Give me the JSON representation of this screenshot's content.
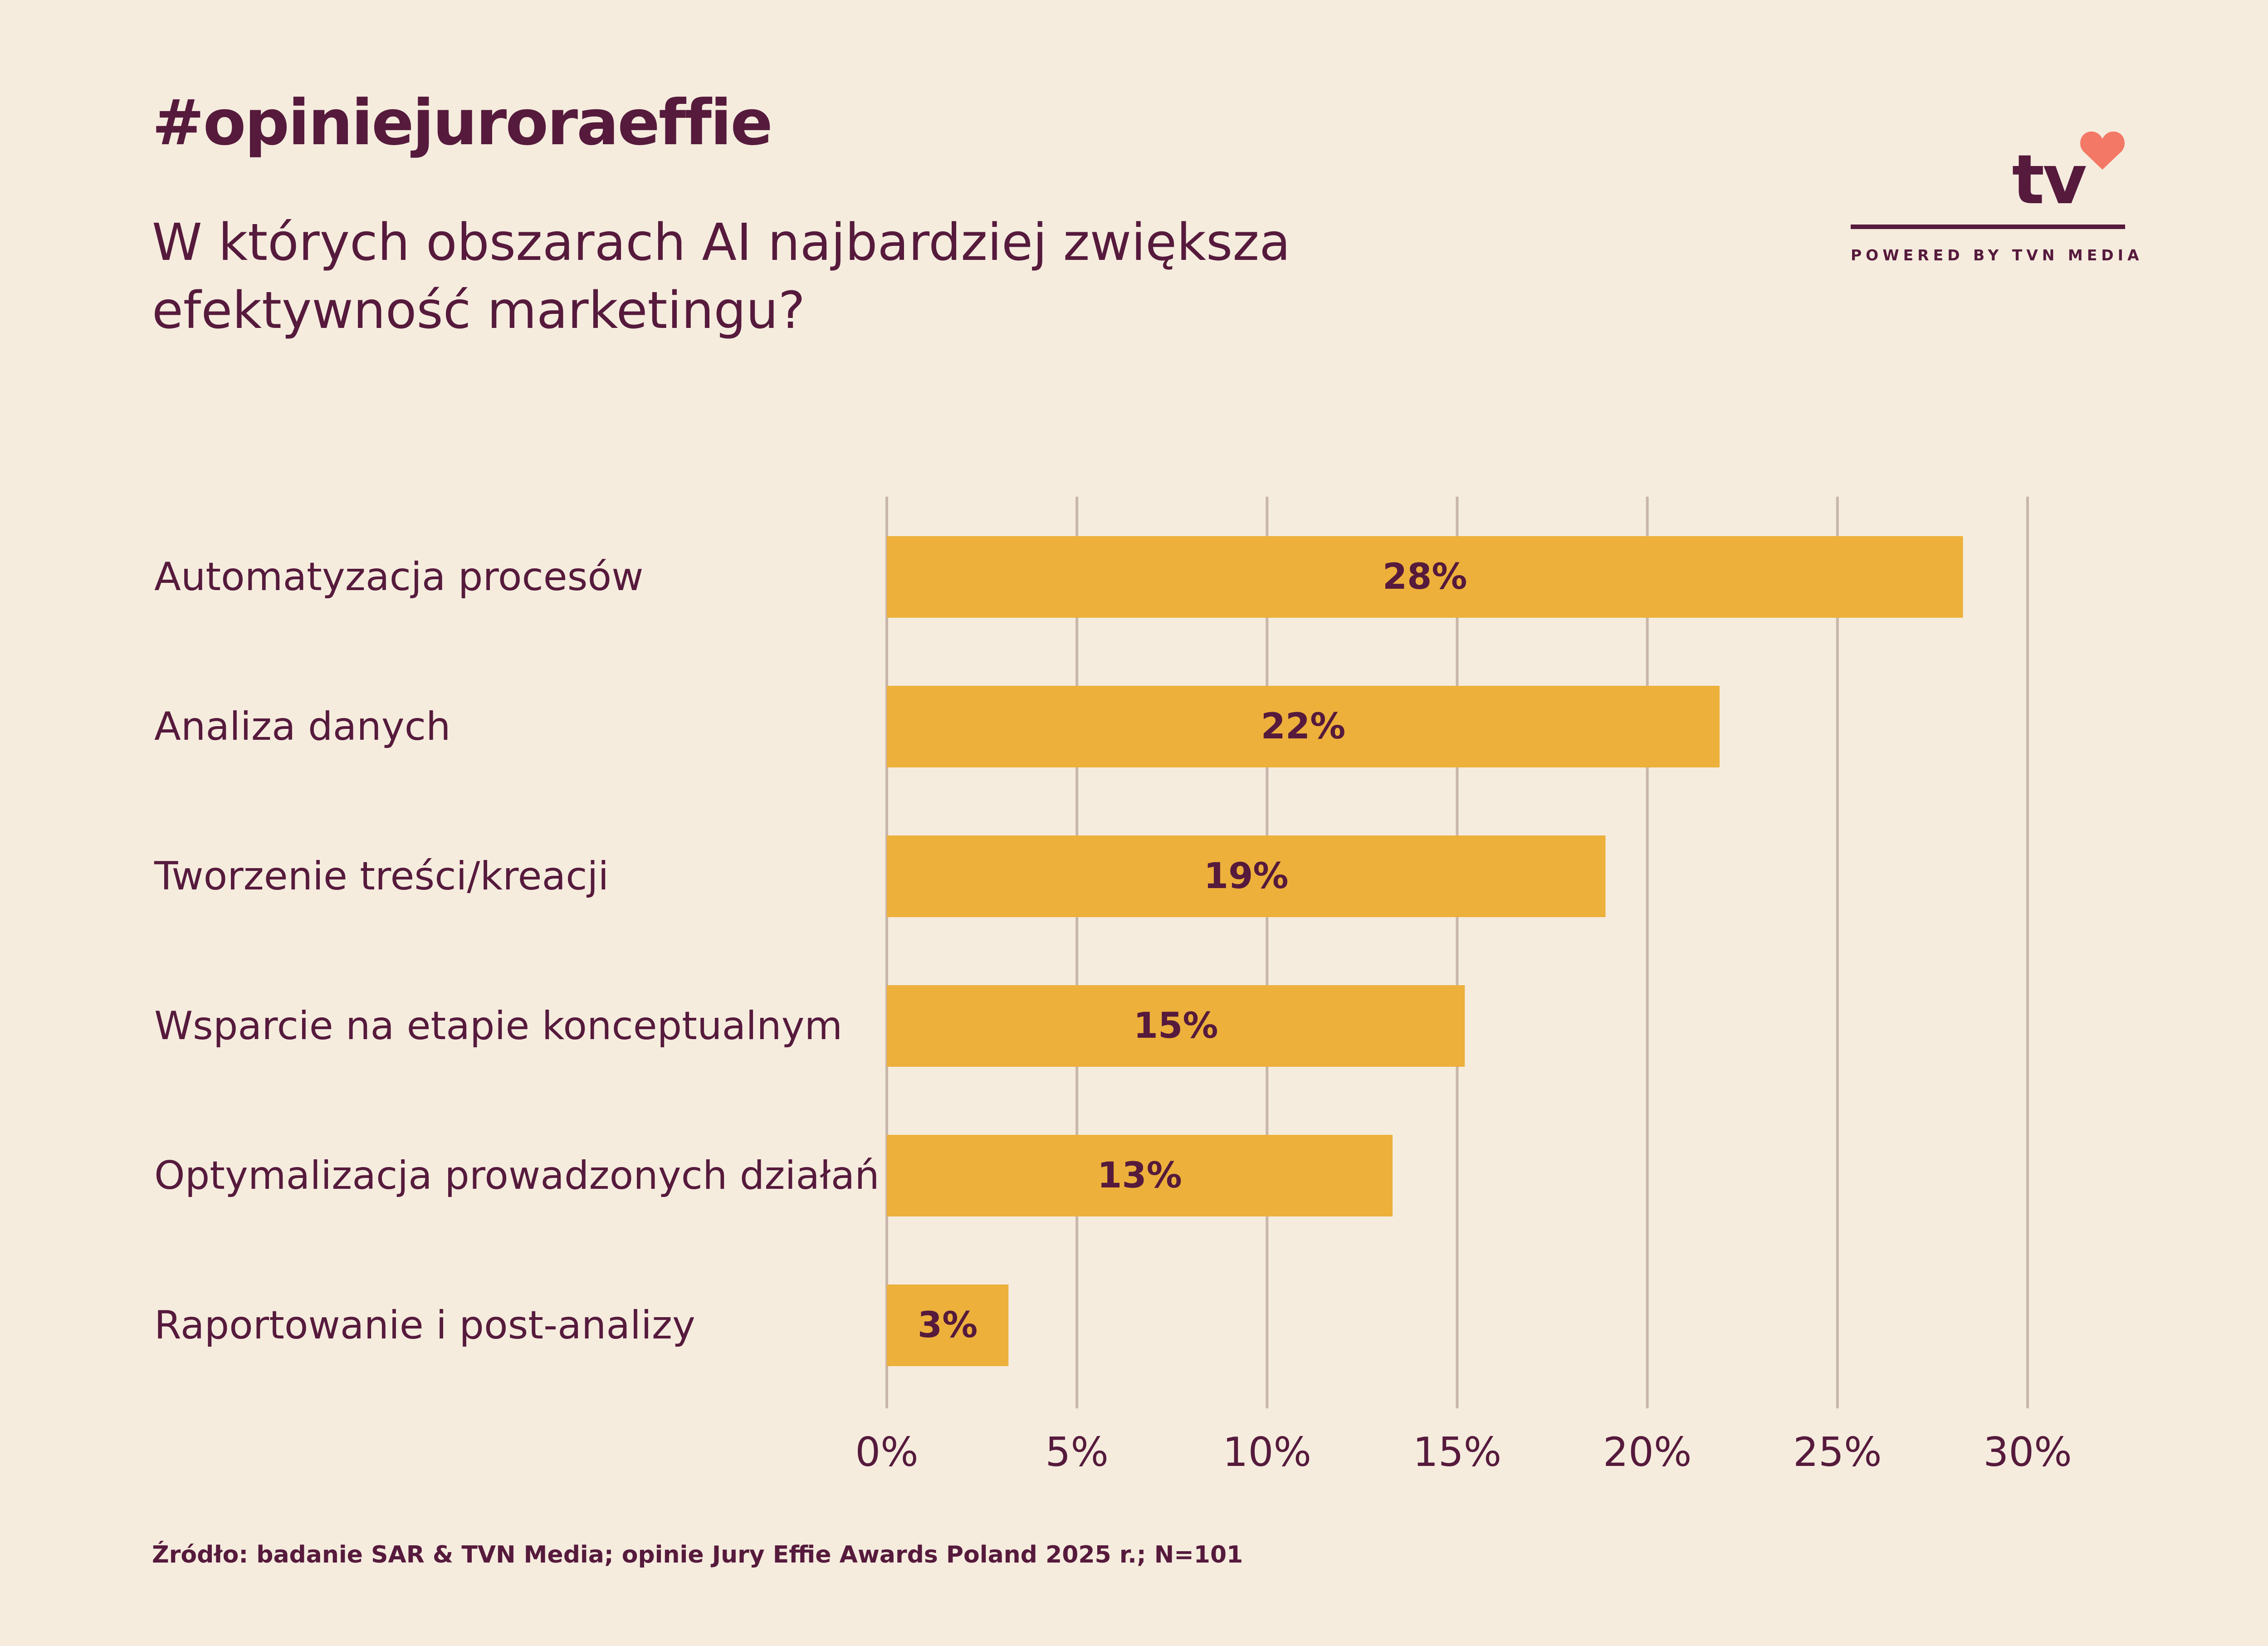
{
  "header": {
    "hashtag": "#opiniejuroraeffie",
    "question": "W których obszarach AI najbardziej zwiększa efektywność marketingu?"
  },
  "logo": {
    "text": "tv",
    "tagline": "POWERED BY TVN MEDIA",
    "heart_icon": "heart-icon",
    "heart_color": "#f37865"
  },
  "footer": {
    "source": "Źródło: badanie SAR & TVN Media; opinie Jury Effie Awards Poland 2025 r.; N=101"
  },
  "colors": {
    "background": "#f5ecde",
    "bar": "#edb03b",
    "text": "#561a3c",
    "grid": "#c9b6ab"
  },
  "chart_data": {
    "type": "bar",
    "orientation": "horizontal",
    "title": "W których obszarach AI najbardziej zwiększa efektywność marketingu?",
    "xlabel": "",
    "ylabel": "",
    "categories": [
      "Automatyzacja procesów",
      "Analiza danych",
      "Tworzenie treści/kreacji",
      "Wsparcie na etapie konceptualnym",
      "Optymalizacja prowadzonych działań",
      "Raportowanie i post-analizy"
    ],
    "values": [
      28.3,
      21.9,
      18.9,
      15.2,
      13.3,
      3.2
    ],
    "value_labels": [
      "28%",
      "22%",
      "19%",
      "15%",
      "13%",
      "3%"
    ],
    "xlim": [
      0,
      30
    ],
    "ticks": [
      0,
      5,
      10,
      15,
      20,
      25,
      30
    ],
    "tick_labels": [
      "0%",
      "5%",
      "10%",
      "15%",
      "20%",
      "25%",
      "30%"
    ],
    "grid": true,
    "legend": "none"
  }
}
